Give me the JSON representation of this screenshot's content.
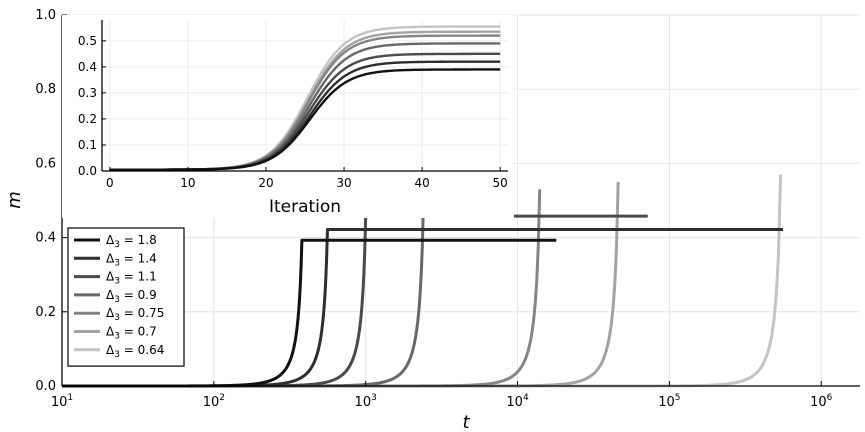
{
  "chart_data": [
    {
      "type": "line",
      "title": "",
      "xlabel": "t",
      "ylabel": "m",
      "xscale": "log",
      "xlim": [
        10,
        1800000
      ],
      "ylim": [
        0,
        1.0
      ],
      "xticks": [
        10,
        100,
        1000,
        10000,
        100000,
        1000000
      ],
      "xtick_labels": [
        {
          "base": "10",
          "exp": "1"
        },
        {
          "base": "10",
          "exp": "2"
        },
        {
          "base": "10",
          "exp": "3"
        },
        {
          "base": "10",
          "exp": "4"
        },
        {
          "base": "10",
          "exp": "5"
        },
        {
          "base": "10",
          "exp": "6"
        }
      ],
      "yticks": [
        0,
        0.2,
        0.4,
        0.6,
        0.8,
        1.0
      ],
      "ytick_labels": [
        "0.0",
        "0.2",
        "0.4",
        "0.6",
        "0.8",
        "1.0"
      ],
      "grid": true,
      "legend_position": "bottom-left",
      "series": [
        {
          "name_base": "Δ",
          "name_sub": "3",
          "name_value": "= 1.8",
          "color": "#111111",
          "transition_t": 380,
          "plateau": 0.393,
          "peak": 0.393,
          "t_end": 18000
        },
        {
          "name_base": "Δ",
          "name_sub": "3",
          "name_value": "= 1.4",
          "color": "#2e2e2e",
          "transition_t": 560,
          "plateau": 0.422,
          "peak": 0.422,
          "t_end": 560000
        },
        {
          "name_base": "Δ",
          "name_sub": "3",
          "name_value": "= 1.1",
          "color": "#4a4a4a",
          "transition_t": 1000,
          "plateau": 0.458,
          "peak": 0.458,
          "t_end": 72000
        },
        {
          "name_base": "Δ",
          "name_sub": "3",
          "name_value": "= 0.9",
          "color": "#686868",
          "transition_t": 2400,
          "plateau": 0.49,
          "peak": 0.49,
          "t_end": 2450
        },
        {
          "name_base": "Δ",
          "name_sub": "3",
          "name_value": "= 0.75",
          "color": "#858585",
          "transition_t": 14000,
          "plateau": 0.53,
          "peak": 0.53,
          "t_end": 14200
        },
        {
          "name_base": "Δ",
          "name_sub": "3",
          "name_value": "= 0.7",
          "color": "#a3a3a3",
          "transition_t": 46000,
          "plateau": 0.55,
          "peak": 0.55,
          "t_end": 46500
        },
        {
          "name_base": "Δ",
          "name_sub": "3",
          "name_value": "= 0.64",
          "color": "#c4c4c4",
          "transition_t": 540000,
          "plateau": 0.57,
          "peak": 0.57,
          "t_end": 545000
        }
      ]
    },
    {
      "type": "line",
      "title": "",
      "xlabel": "Iteration",
      "ylabel": "",
      "xlim": [
        -1,
        51
      ],
      "ylim": [
        0,
        0.58
      ],
      "xticks": [
        0,
        10,
        20,
        30,
        40,
        50
      ],
      "xtick_labels": [
        "0",
        "10",
        "20",
        "30",
        "40",
        "50"
      ],
      "yticks": [
        0,
        0.1,
        0.2,
        0.3,
        0.4,
        0.5
      ],
      "ytick_labels": [
        "0.0",
        "0.1",
        "0.2",
        "0.3",
        "0.4",
        "0.5"
      ],
      "grid": true,
      "series": [
        {
          "plateau": 0.39,
          "midpoint": 25.6,
          "color": "#111111"
        },
        {
          "plateau": 0.42,
          "midpoint": 25.6,
          "color": "#2e2e2e"
        },
        {
          "plateau": 0.45,
          "midpoint": 25.5,
          "color": "#4a4a4a"
        },
        {
          "plateau": 0.49,
          "midpoint": 25.5,
          "color": "#686868"
        },
        {
          "plateau": 0.52,
          "midpoint": 25.4,
          "color": "#858585"
        },
        {
          "plateau": 0.535,
          "midpoint": 25.4,
          "color": "#a3a3a3"
        },
        {
          "plateau": 0.555,
          "midpoint": 25.3,
          "color": "#c4c4c4"
        }
      ]
    }
  ]
}
